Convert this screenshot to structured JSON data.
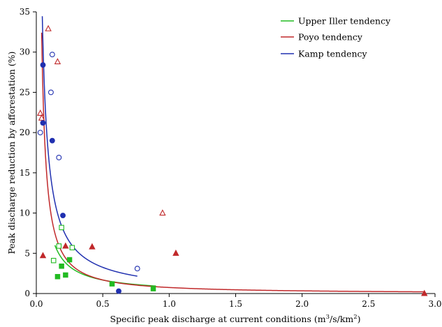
{
  "chart_data": {
    "type": "scatter",
    "xlabel_main": "Specific peak discharge at current conditions (m",
    "xlabel_sup1": "3",
    "xlabel_mid": "/s/km",
    "xlabel_sup2": "2",
    "xlabel_end": ")",
    "ylabel": "Peak discharge reduction by afforestation (%)",
    "xlim": [
      0,
      3.0
    ],
    "ylim": [
      0,
      35
    ],
    "x_ticks": [
      0.0,
      0.5,
      1.0,
      1.5,
      2.0,
      2.5,
      3.0
    ],
    "x_tick_labels": [
      "0.0",
      "0.5",
      "1.0",
      "1.5",
      "2.0",
      "2.5",
      "3.0"
    ],
    "y_ticks": [
      0,
      5,
      10,
      15,
      20,
      25,
      30,
      35
    ],
    "y_tick_labels": [
      "0",
      "5",
      "10",
      "15",
      "20",
      "25",
      "30",
      "35"
    ],
    "grid": false,
    "legend_position": "top-right",
    "legend": [
      {
        "label": "Upper Iller tendency",
        "color": "#22bb22"
      },
      {
        "label": "Poyo tendency",
        "color": "#c0282a"
      },
      {
        "label": "Kamp tendency",
        "color": "#2030b0"
      }
    ],
    "series": [
      {
        "color": "#22bb22",
        "marker": "square",
        "filled_points": [
          [
            0.16,
            2.1
          ],
          [
            0.19,
            3.4
          ],
          [
            0.22,
            2.3
          ],
          [
            0.25,
            4.2
          ],
          [
            0.57,
            1.2
          ],
          [
            0.88,
            0.6
          ]
        ],
        "open_points": [
          [
            0.13,
            4.1
          ],
          [
            0.17,
            5.9
          ],
          [
            0.19,
            8.2
          ],
          [
            0.27,
            5.7
          ]
        ],
        "trend": {
          "a": 0.84,
          "b": -1.0,
          "x_from": 0.14,
          "x_to": 0.9
        }
      },
      {
        "color": "#c0282a",
        "marker": "triangle",
        "filled_points": [
          [
            0.05,
            4.7
          ],
          [
            0.22,
            5.9
          ],
          [
            0.42,
            5.8
          ],
          [
            1.05,
            5.0
          ],
          [
            2.92,
            0.0
          ]
        ],
        "open_points": [
          [
            0.03,
            22.4
          ],
          [
            0.04,
            21.8
          ],
          [
            0.09,
            32.9
          ],
          [
            0.16,
            28.8
          ],
          [
            0.95,
            10.0
          ]
        ],
        "trend": {
          "a": 0.75,
          "b": -1.17,
          "x_from": 0.04,
          "x_to": 2.92
        }
      },
      {
        "color": "#2030b0",
        "marker": "circle",
        "filled_points": [
          [
            0.05,
            28.4
          ],
          [
            0.05,
            21.2
          ],
          [
            0.12,
            19.0
          ],
          [
            0.2,
            9.7
          ],
          [
            0.62,
            0.3
          ]
        ],
        "open_points": [
          [
            0.03,
            20.0
          ],
          [
            0.11,
            25.0
          ],
          [
            0.12,
            29.7
          ],
          [
            0.17,
            16.9
          ],
          [
            0.76,
            3.1
          ]
        ],
        "trend": {
          "a": 1.65,
          "b": -0.98,
          "x_from": 0.045,
          "x_to": 0.76
        }
      }
    ]
  }
}
